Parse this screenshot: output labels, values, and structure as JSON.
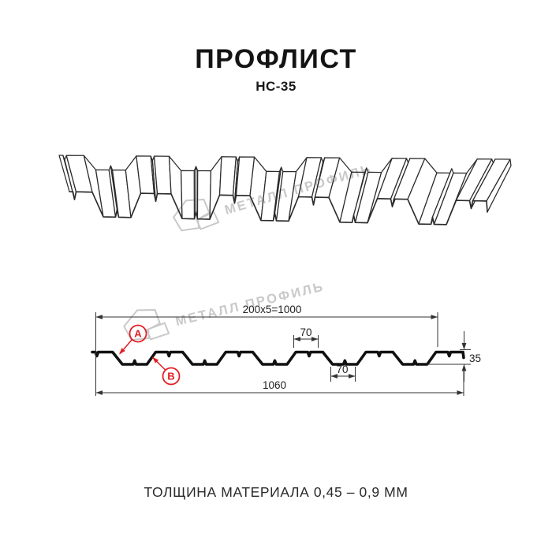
{
  "title": "ПРОФЛИСТ",
  "subtitle": "НС-35",
  "footer": {
    "thickness_note": "ТОЛЩИНА МАТЕРИАЛА 0,45 – 0,9 ММ"
  },
  "watermark": {
    "brand": "МЕТАЛЛ ПРОФИЛЬ"
  },
  "diagram": {
    "dimensions": {
      "top_span": "200x5=1000",
      "rib_top_width": "70",
      "rib_bottom_width": "70",
      "total_width": "1060",
      "profile_height": "35"
    },
    "markers": {
      "a": "А",
      "b": "В"
    }
  },
  "colors": {
    "accent_red": "#e31e24",
    "drawing_line": "#2b2b2b",
    "section_line": "#111111",
    "dim_line": "#333333",
    "watermark_gray": "#c9c9c9"
  }
}
